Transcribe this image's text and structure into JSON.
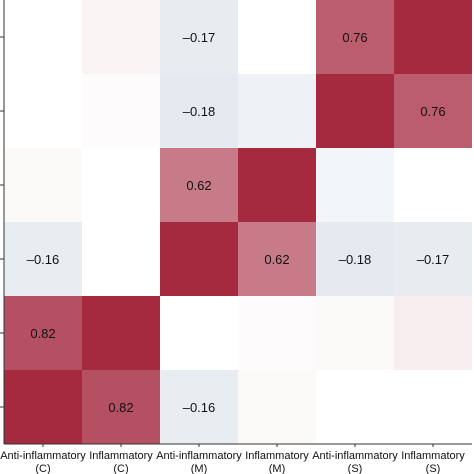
{
  "chart_data": {
    "type": "heatmap",
    "title": "",
    "xlabel": "",
    "ylabel": "",
    "x_categories": [
      {
        "line1": "Anti-inflammatory",
        "line2": "(C)"
      },
      {
        "line1": "Inflammatory",
        "line2": "(C)"
      },
      {
        "line1": "Anti-inflammatory",
        "line2": "(M)"
      },
      {
        "line1": "Inflammatory",
        "line2": "(M)"
      },
      {
        "line1": "Anti-inflammatory",
        "line2": "(S)"
      },
      {
        "line1": "Inflammatory",
        "line2": "(S)"
      }
    ],
    "rows_top_to_bottom": [
      [
        0.0,
        0.05,
        -0.17,
        0.0,
        0.76,
        1.0
      ],
      [
        0.0,
        0.02,
        -0.18,
        -0.12,
        1.0,
        0.76
      ],
      [
        0.03,
        0.0,
        0.62,
        1.0,
        -0.08,
        0.0
      ],
      [
        -0.16,
        0.0,
        1.0,
        0.62,
        -0.18,
        -0.17
      ],
      [
        0.82,
        1.0,
        0.0,
        0.02,
        0.03,
        0.08
      ],
      [
        1.0,
        0.82,
        -0.16,
        0.03,
        0.0,
        0.0
      ]
    ],
    "shown_labels": [
      {
        "row": 0,
        "col": 2,
        "text": "–0.17"
      },
      {
        "row": 0,
        "col": 4,
        "text": "0.76"
      },
      {
        "row": 1,
        "col": 2,
        "text": "–0.18"
      },
      {
        "row": 1,
        "col": 5,
        "text": "0.76"
      },
      {
        "row": 2,
        "col": 2,
        "text": "0.62"
      },
      {
        "row": 3,
        "col": 0,
        "text": "–0.16"
      },
      {
        "row": 3,
        "col": 3,
        "text": "0.62"
      },
      {
        "row": 3,
        "col": 4,
        "text": "–0.18"
      },
      {
        "row": 3,
        "col": 5,
        "text": "–0.17"
      },
      {
        "row": 4,
        "col": 0,
        "text": "0.82"
      },
      {
        "row": 5,
        "col": 1,
        "text": "0.82"
      },
      {
        "row": 5,
        "col": 2,
        "text": "–0.16"
      }
    ],
    "color_scale": {
      "positive": "#a52a3f",
      "neutral": "#ffffff",
      "negative": "#b7c6d6",
      "range": [
        -0.5,
        1.0
      ]
    },
    "grid": false,
    "legend": "none"
  }
}
